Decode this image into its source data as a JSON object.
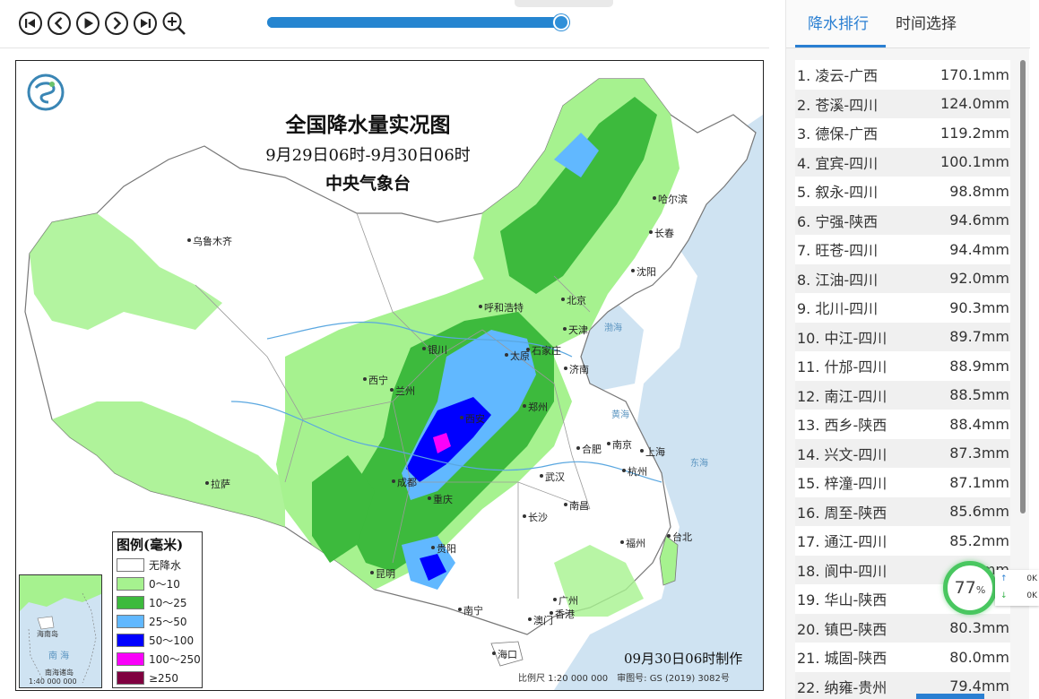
{
  "toolbar": {
    "controls": [
      "first-frame-icon",
      "prev-frame-icon",
      "play-icon",
      "next-frame-icon",
      "last-frame-icon",
      "zoom-in-icon"
    ],
    "slider": {
      "position_percent": 97
    }
  },
  "map": {
    "title": "全国降水量实况图",
    "period": "9月29日06时-9月30日06时",
    "agency": "中央气象台",
    "legend": {
      "title": "图例(毫米)",
      "items": [
        {
          "label": "无降水",
          "color": "#ffffff"
        },
        {
          "label": "0～10",
          "color": "#a6f28f"
        },
        {
          "label": "10～25",
          "color": "#3dba3d"
        },
        {
          "label": "25～50",
          "color": "#61b8ff"
        },
        {
          "label": "50～100",
          "color": "#0000ff"
        },
        {
          "label": "100～250",
          "color": "#fa00fa"
        },
        {
          "label": "≥250",
          "color": "#800040"
        }
      ]
    },
    "cities": {
      "wulumuqi": "乌鲁木齐",
      "haerbin": "哈尔滨",
      "changchun": "长春",
      "shenyang": "沈阳",
      "huhehaote": "呼和浩特",
      "beijing": "北京",
      "tianjin": "天津",
      "yinchuan": "银川",
      "taiyuan": "太原",
      "shijiazhuang": "石家庄",
      "jinan": "济南",
      "xining": "西宁",
      "lanzhou": "兰州",
      "zhengzhou": "郑州",
      "xian": "西安",
      "hefei": "合肥",
      "nanjing": "南京",
      "shanghai": "上海",
      "lasa": "拉萨",
      "chengdu": "成都",
      "wuhan": "武汉",
      "hangzhou": "杭州",
      "chongqing": "重庆",
      "changsha": "长沙",
      "nanchang": "南昌",
      "guiyang": "贵阳",
      "fuzhou": "福州",
      "taibei": "台北",
      "kunming": "昆明",
      "guangzhou": "广州",
      "nanning": "南宁",
      "aomen": "澳门",
      "xianggang": "香港",
      "haikou": "海口"
    },
    "seas": {
      "huanghai": "黄海",
      "donghai": "东海",
      "bohai": "渤海",
      "nanhai": "南海"
    },
    "inset": {
      "sea": "南 海",
      "islands": "南海诸岛",
      "scale": "1:40 000 000",
      "hainan": "海南岛"
    },
    "made_note": "09月30日06时制作",
    "scale_note": "比例尺 1:20 000 000　审图号: GS (2019) 3082号"
  },
  "side": {
    "tabs": [
      {
        "label": "降水排行",
        "active": true
      },
      {
        "label": "时间选择",
        "active": false
      }
    ],
    "ranking": [
      {
        "station": "1. 凌云-广西",
        "value": "170.1mm"
      },
      {
        "station": "2. 苍溪-四川",
        "value": "124.0mm"
      },
      {
        "station": "3. 德保-广西",
        "value": "119.2mm"
      },
      {
        "station": "4. 宜宾-四川",
        "value": "100.1mm"
      },
      {
        "station": "5. 叙永-四川",
        "value": "98.8mm"
      },
      {
        "station": "6. 宁强-陕西",
        "value": "94.6mm"
      },
      {
        "station": "7. 旺苍-四川",
        "value": "94.4mm"
      },
      {
        "station": "8. 江油-四川",
        "value": "92.0mm"
      },
      {
        "station": "9. 北川-四川",
        "value": "90.3mm"
      },
      {
        "station": "10. 中江-四川",
        "value": "89.7mm"
      },
      {
        "station": "11. 什邡-四川",
        "value": "88.9mm"
      },
      {
        "station": "12. 南江-四川",
        "value": "88.5mm"
      },
      {
        "station": "13. 西乡-陕西",
        "value": "88.4mm"
      },
      {
        "station": "14. 兴文-四川",
        "value": "87.3mm"
      },
      {
        "station": "15. 梓潼-四川",
        "value": "87.1mm"
      },
      {
        "station": "16. 周至-陕西",
        "value": "85.6mm"
      },
      {
        "station": "17. 通江-四川",
        "value": "85.2mm"
      },
      {
        "station": "18. 阆中-四川",
        "value": "mm"
      },
      {
        "station": "19. 华山-陕西",
        "value": ""
      },
      {
        "station": "20. 镇巴-陕西",
        "value": "80.3mm"
      },
      {
        "station": "21. 城固-陕西",
        "value": "80.0mm"
      },
      {
        "station": "22. 纳雍-贵州",
        "value": "79.4mm"
      }
    ],
    "netmon": {
      "percent": "77",
      "unit": "%",
      "up_label": "↑",
      "up_value": "0K",
      "down_label": "↓",
      "down_value": "0K"
    }
  }
}
